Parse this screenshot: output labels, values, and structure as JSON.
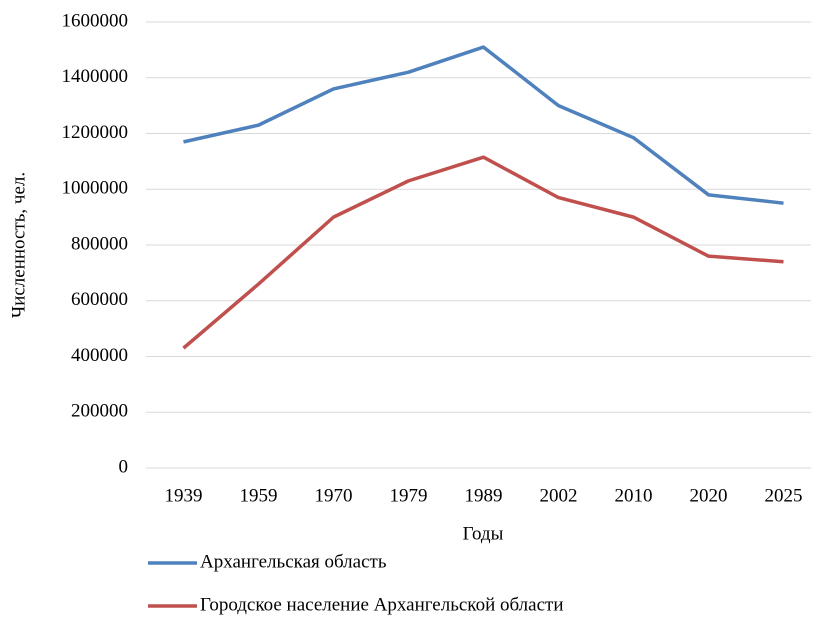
{
  "chart_data": {
    "type": "line",
    "x_label": "Годы",
    "y_label": "Численность, чел.",
    "categories": [
      "1939",
      "1959",
      "1970",
      "1979",
      "1989",
      "2002",
      "2010",
      "2020",
      "2025"
    ],
    "series": [
      {
        "name": "Архангельская область",
        "color": "#4f81bd",
        "values": [
          1170000,
          1230000,
          1360000,
          1420000,
          1510000,
          1300000,
          1185000,
          980000,
          950000
        ]
      },
      {
        "name": "Городское население Архангельской области",
        "color": "#c0504d",
        "values": [
          430000,
          660000,
          900000,
          1030000,
          1115000,
          970000,
          900000,
          760000,
          740000
        ]
      }
    ],
    "ylim": [
      0,
      1600000
    ],
    "yticks": [
      0,
      200000,
      400000,
      600000,
      800000,
      1000000,
      1200000,
      1400000,
      1600000
    ],
    "grid": true,
    "legend": "bottom"
  }
}
